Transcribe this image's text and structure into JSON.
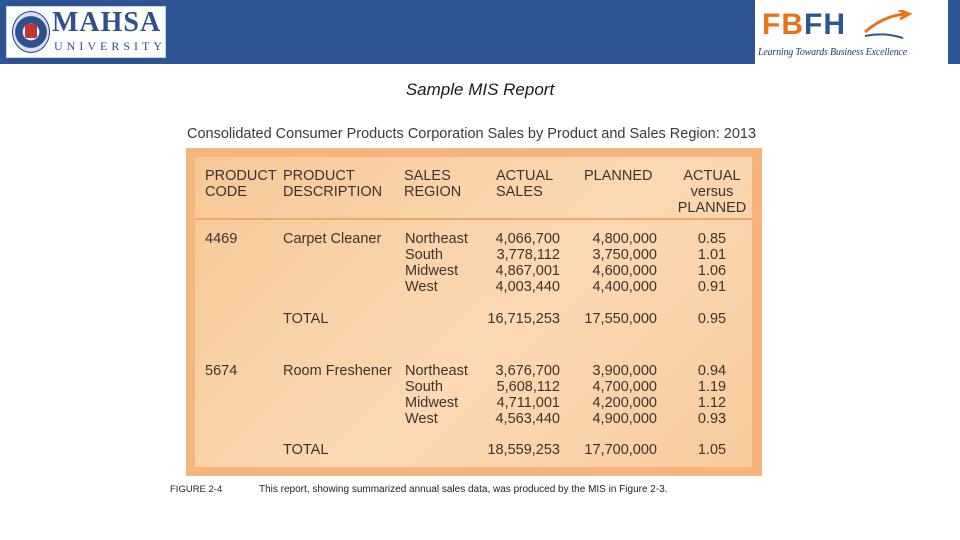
{
  "header": {
    "left_logo": {
      "name": "MAHSA",
      "subtitle": "UNIVERSITY"
    },
    "right_logo": {
      "name_part1": "FB",
      "name_part2": "FH",
      "tagline": "Learning Towards Business Excellence"
    },
    "colors": {
      "bar": "#2d5596",
      "orange": "#e8731a",
      "navy": "#2d5596"
    }
  },
  "slide_title": "Sample MIS Report",
  "report": {
    "title": "Consolidated Consumer Products Corporation Sales by Product and Sales Region: 2013",
    "columns": [
      [
        "PRODUCT",
        "CODE"
      ],
      [
        "PRODUCT",
        "DESCRIPTION"
      ],
      [
        "SALES",
        "REGION"
      ],
      [
        "ACTUAL",
        "SALES"
      ],
      [
        "PLANNED"
      ],
      [
        "ACTUAL",
        "versus",
        "PLANNED"
      ]
    ],
    "products": [
      {
        "code": "4469",
        "description": "Carpet Cleaner",
        "regions": [
          "Northeast",
          "South",
          "Midwest",
          "West"
        ],
        "actual": [
          "4,066,700",
          "3,778,112",
          "4,867,001",
          "4,003,440"
        ],
        "planned": [
          "4,800,000",
          "3,750,000",
          "4,600,000",
          "4,400,000"
        ],
        "ratio": [
          "0.85",
          "1.01",
          "1.06",
          "0.91"
        ],
        "total_label": "TOTAL",
        "total_actual": "16,715,253",
        "total_planned": "17,550,000",
        "total_ratio": "0.95"
      },
      {
        "code": "5674",
        "description": "Room Freshener",
        "regions": [
          "Northeast",
          "South",
          "Midwest",
          "West"
        ],
        "actual": [
          "3,676,700",
          "5,608,112",
          "4,711,001",
          "4,563,440"
        ],
        "planned": [
          "3,900,000",
          "4,700,000",
          "4,200,000",
          "4,900,000"
        ],
        "ratio": [
          "0.94",
          "1.19",
          "1.12",
          "0.93"
        ],
        "total_label": "TOTAL",
        "total_actual": "18,559,253",
        "total_planned": "17,700,000",
        "total_ratio": "1.05"
      }
    ]
  },
  "caption": {
    "label": "FIGURE 2-4",
    "text": "This report, showing summarized annual sales data, was produced by the MIS in Figure 2-3."
  }
}
